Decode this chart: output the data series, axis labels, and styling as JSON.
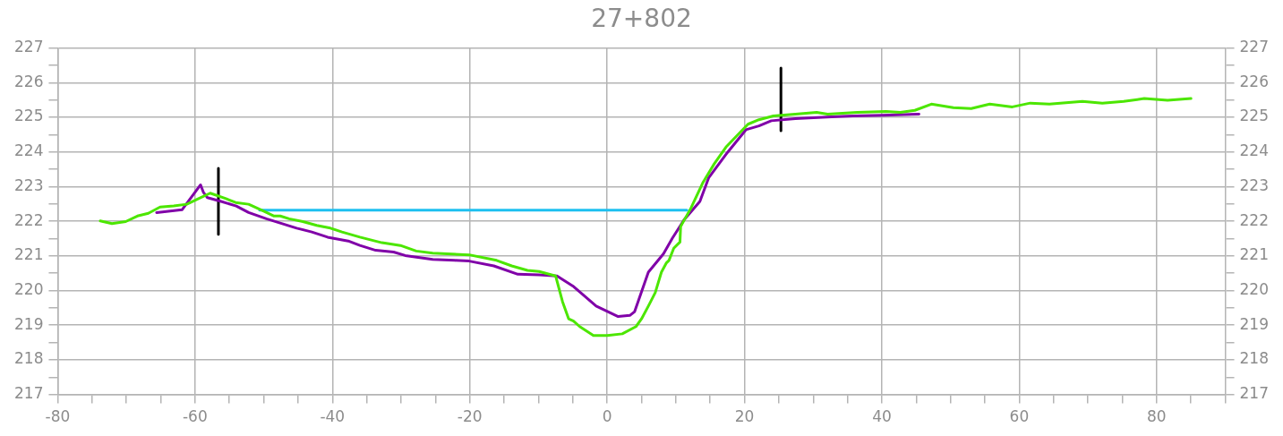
{
  "chart_data": {
    "type": "line",
    "title": "27+802",
    "legend": false,
    "grid": true,
    "marker": "none",
    "line_style": "solid",
    "xlim": [
      -80,
      90
    ],
    "xticks": [
      -80,
      {
        "value": -75,
        "label": null
      },
      {
        "value": -70,
        "label": null
      },
      {
        "value": -65,
        "label": null
      },
      -60,
      {
        "value": -55,
        "label": null
      },
      {
        "value": -50,
        "label": null
      },
      {
        "value": -45,
        "label": null
      },
      -40,
      {
        "value": -35,
        "label": null
      },
      {
        "value": -30,
        "label": null
      },
      {
        "value": -25,
        "label": null
      },
      -20,
      {
        "value": -15,
        "label": null
      },
      {
        "value": -10,
        "label": null
      },
      {
        "value": -5,
        "label": null
      },
      0,
      {
        "value": 5,
        "label": null
      },
      {
        "value": 10,
        "label": null
      },
      {
        "value": 15,
        "label": null
      },
      20,
      {
        "value": 25,
        "label": null
      },
      {
        "value": 30,
        "label": null
      },
      {
        "value": 35,
        "label": null
      },
      40,
      {
        "value": 45,
        "label": null
      },
      {
        "value": 50,
        "label": null
      },
      {
        "value": 55,
        "label": null
      },
      60,
      {
        "value": 65,
        "label": null
      },
      {
        "value": 70,
        "label": null
      },
      {
        "value": 75,
        "label": null
      },
      80,
      {
        "value": 85,
        "label": null
      },
      {
        "value": 90,
        "label": null
      }
    ],
    "ylim": [
      217,
      227
    ],
    "yticks": [
      217,
      {
        "value": 217.5,
        "label": null
      },
      218,
      {
        "value": 218.5,
        "label": null
      },
      219,
      {
        "value": 219.5,
        "label": null
      },
      220,
      {
        "value": 220.5,
        "label": null
      },
      221,
      {
        "value": 221.5,
        "label": null
      },
      222,
      {
        "value": 222.5,
        "label": null
      },
      223,
      {
        "value": 223.5,
        "label": null
      },
      224,
      {
        "value": 224.5,
        "label": null
      },
      225,
      {
        "value": 225.5,
        "label": null
      },
      226,
      {
        "value": 226.5,
        "label": null
      },
      227
    ],
    "y2lim": [
      217,
      227
    ],
    "y2ticks": [
      217,
      {
        "value": 217.5,
        "label": null
      },
      218,
      {
        "value": 218.5,
        "label": null
      },
      219,
      {
        "value": 219.5,
        "label": null
      },
      220,
      {
        "value": 220.5,
        "label": null
      },
      221,
      {
        "value": 221.5,
        "label": null
      },
      222,
      {
        "value": 222.5,
        "label": null
      },
      223,
      {
        "value": 223.5,
        "label": null
      },
      224,
      {
        "value": 224.5,
        "label": null
      },
      225,
      {
        "value": 225.5,
        "label": null
      },
      226,
      {
        "value": 226.5,
        "label": null
      },
      227
    ],
    "series": [
      {
        "type": "line",
        "color": "#4ce600",
        "x": [
          -73.8,
          -72.1,
          -70.1,
          -68.4,
          -66.8,
          -65.1,
          -63.1,
          -61.2,
          -59.5,
          -57.8,
          -55.5,
          -54.1,
          -52.2,
          -50.2,
          -48.5,
          -47.6,
          -46.3,
          -44.3,
          -42.3,
          -40.3,
          -38.6,
          -36.0,
          -32.8,
          -30.1,
          -27.8,
          -25.4,
          -20.1,
          -16.1,
          -13.9,
          -11.6,
          -9.9,
          -7.5,
          -6.5,
          -5.6,
          -4.9,
          -4.0,
          -2.0,
          0.0,
          2.2,
          4.2,
          5.0,
          6.0,
          7.0,
          7.9,
          8.6,
          9.0,
          9.7,
          10.6,
          10.7,
          12.2,
          13.9,
          15.6,
          17.3,
          20.5,
          22.1,
          24.2,
          27.4,
          30.5,
          32.1,
          36.4,
          40.6,
          42.7,
          44.8,
          47.2,
          50.4,
          53.0,
          55.7,
          59.0,
          61.6,
          64.4,
          69.2,
          72.1,
          75.2,
          78.2,
          81.6,
          85.0
        ],
        "values": [
          222.01,
          221.93,
          221.99,
          222.15,
          222.23,
          222.41,
          222.44,
          222.49,
          222.65,
          222.81,
          222.65,
          222.54,
          222.49,
          222.31,
          222.15,
          222.15,
          222.07,
          221.99,
          221.88,
          221.8,
          221.69,
          221.54,
          221.38,
          221.3,
          221.14,
          221.08,
          221.03,
          220.87,
          220.71,
          220.58,
          220.55,
          220.42,
          219.68,
          219.18,
          219.12,
          218.96,
          218.7,
          218.7,
          218.75,
          218.96,
          219.18,
          219.55,
          219.94,
          220.53,
          220.79,
          220.87,
          221.22,
          221.4,
          221.85,
          222.38,
          223.1,
          223.66,
          224.14,
          224.8,
          224.93,
          225.04,
          225.09,
          225.14,
          225.09,
          225.14,
          225.17,
          225.14,
          225.2,
          225.38,
          225.28,
          225.25,
          225.38,
          225.3,
          225.41,
          225.38,
          225.46,
          225.41,
          225.46,
          225.54,
          225.49,
          225.54
        ]
      },
      {
        "type": "line",
        "color": "#8000a8",
        "x": [
          -65.6,
          -61.9,
          -59.2,
          -58.8,
          -58.2,
          -56.2,
          -54.0,
          -52.2,
          -49.6,
          -45.2,
          -43.0,
          -40.7,
          -37.7,
          -36.0,
          -33.7,
          -31.1,
          -29.4,
          -25.4,
          -22.2,
          -20.1,
          -16.5,
          -13.0,
          -9.9,
          -7.3,
          -5.0,
          -1.6,
          1.6,
          3.3,
          4.0,
          6.0,
          8.2,
          9.5,
          11.2,
          13.5,
          14.8,
          17.5,
          20.2,
          22.1,
          23.9,
          27.4,
          32.7,
          35.8,
          40.1,
          45.4
        ],
        "values": [
          222.25,
          222.33,
          223.05,
          222.84,
          222.68,
          222.57,
          222.44,
          222.25,
          222.07,
          221.8,
          221.69,
          221.54,
          221.43,
          221.3,
          221.16,
          221.11,
          221.01,
          220.9,
          220.87,
          220.85,
          220.71,
          220.47,
          220.45,
          220.42,
          220.13,
          219.55,
          219.25,
          219.28,
          219.39,
          220.53,
          221.06,
          221.51,
          222.04,
          222.57,
          223.26,
          223.98,
          224.64,
          224.75,
          224.9,
          224.96,
          225.01,
          225.04,
          225.06,
          225.09
        ]
      },
      {
        "type": "line",
        "color": "#1ec0f0",
        "x": [
          -50.6,
          11.6
        ],
        "values": [
          222.32,
          222.32
        ]
      },
      {
        "type": "line",
        "color": "#000000",
        "x": [
          -56.6,
          -56.6
        ],
        "values": [
          221.62,
          223.53
        ]
      },
      {
        "type": "line",
        "color": "#000000",
        "x": [
          25.3,
          25.3
        ],
        "values": [
          224.61,
          226.42
        ]
      }
    ]
  }
}
